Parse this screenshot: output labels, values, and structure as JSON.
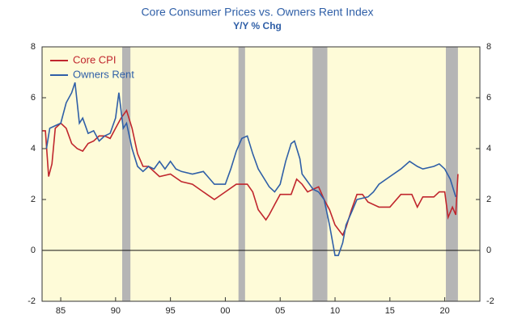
{
  "chart_data": {
    "type": "line",
    "title": "Core Consumer Prices vs. Owners Rent Index",
    "subtitle": "Y/Y % Chg",
    "xlim": [
      1983.3,
      2023.2
    ],
    "xticks": [
      {
        "value": 1985,
        "label": "85"
      },
      {
        "value": 1990,
        "label": "90"
      },
      {
        "value": 1995,
        "label": "95"
      },
      {
        "value": 2000,
        "label": "00"
      },
      {
        "value": 2005,
        "label": "05"
      },
      {
        "value": 2010,
        "label": "10"
      },
      {
        "value": 2015,
        "label": "15"
      },
      {
        "value": 2020,
        "label": "20"
      }
    ],
    "ylim": [
      -2,
      8
    ],
    "yticks": [
      -2,
      0,
      2,
      4,
      6,
      8
    ],
    "y2lim": [
      -2,
      8
    ],
    "y2ticks": [
      -2,
      0,
      2,
      4,
      6,
      8
    ],
    "legend": "upper left",
    "background": "#fefbd8",
    "recession_color": "#b5b5b5",
    "recessions": [
      [
        1990.6,
        1991.35
      ],
      [
        2001.2,
        2001.8
      ],
      [
        2007.95,
        2009.3
      ],
      [
        2020.1,
        2021.2
      ]
    ],
    "series": [
      {
        "name": "Core CPI",
        "color": "#c0262d",
        "x": [
          1983.3,
          1983.6,
          1983.9,
          1984.2,
          1984.5,
          1985,
          1985.5,
          1986,
          1986.5,
          1987,
          1987.5,
          1988,
          1988.5,
          1989,
          1989.5,
          1990,
          1990.5,
          1991,
          1991.5,
          1992,
          1992.5,
          1993,
          1994,
          1995,
          1996,
          1997,
          1998,
          1999,
          2000,
          2001,
          2002,
          2002.5,
          2003,
          2003.7,
          2004,
          2004.5,
          2005,
          2006,
          2006.5,
          2007,
          2007.5,
          2008,
          2008.5,
          2009,
          2009.5,
          2010,
          2010.7,
          2011,
          2011.5,
          2012,
          2012.5,
          2013,
          2014,
          2015,
          2016,
          2017,
          2017.5,
          2018,
          2019,
          2019.5,
          2020,
          2020.3,
          2020.7,
          2021,
          2021.2
        ],
        "values": [
          4.7,
          4.7,
          2.9,
          3.4,
          4.8,
          5.0,
          4.8,
          4.2,
          4.0,
          3.9,
          4.2,
          4.3,
          4.5,
          4.5,
          4.4,
          4.8,
          5.2,
          5.5,
          4.8,
          3.8,
          3.3,
          3.3,
          2.9,
          3.0,
          2.7,
          2.6,
          2.3,
          2.0,
          2.3,
          2.6,
          2.6,
          2.3,
          1.6,
          1.2,
          1.4,
          1.8,
          2.2,
          2.2,
          2.8,
          2.6,
          2.3,
          2.4,
          2.5,
          2.0,
          1.6,
          1.0,
          0.6,
          0.9,
          1.6,
          2.2,
          2.2,
          1.9,
          1.7,
          1.7,
          2.2,
          2.2,
          1.7,
          2.1,
          2.1,
          2.3,
          2.3,
          1.3,
          1.7,
          1.4,
          3.0
        ]
      },
      {
        "name": "Owners Rent",
        "color": "#2f5fa7",
        "x": [
          1983.7,
          1984,
          1984.5,
          1985,
          1985.5,
          1986,
          1986.3,
          1986.7,
          1987,
          1987.5,
          1988,
          1988.5,
          1989,
          1989.5,
          1990,
          1990.3,
          1990.7,
          1991,
          1991.5,
          1992,
          1992.5,
          1993,
          1993.5,
          1994,
          1994.5,
          1995,
          1995.5,
          1996,
          1997,
          1998,
          1999,
          2000,
          2000.5,
          2001,
          2001.5,
          2002,
          2002.5,
          2003,
          2004,
          2004.5,
          2005,
          2005.5,
          2006,
          2006.3,
          2006.8,
          2007,
          2007.5,
          2008,
          2008.5,
          2009,
          2009.5,
          2010,
          2010.3,
          2010.7,
          2011,
          2011.5,
          2012,
          2013,
          2013.5,
          2014,
          2015,
          2016,
          2016.8,
          2017.5,
          2018,
          2019,
          2019.5,
          2020,
          2020.5,
          2021
        ],
        "values": [
          4.0,
          4.8,
          4.9,
          5.0,
          5.8,
          6.2,
          6.6,
          5.0,
          5.2,
          4.6,
          4.7,
          4.3,
          4.5,
          4.6,
          5.2,
          6.2,
          4.8,
          5.0,
          4.0,
          3.3,
          3.1,
          3.3,
          3.2,
          3.5,
          3.2,
          3.5,
          3.2,
          3.1,
          3.0,
          3.1,
          2.6,
          2.6,
          3.2,
          3.9,
          4.4,
          4.5,
          3.8,
          3.2,
          2.5,
          2.3,
          2.6,
          3.5,
          4.2,
          4.3,
          3.6,
          3.0,
          2.7,
          2.4,
          2.3,
          2.0,
          1.0,
          -0.2,
          -0.2,
          0.3,
          1.0,
          1.5,
          2.0,
          2.1,
          2.3,
          2.6,
          2.9,
          3.2,
          3.5,
          3.3,
          3.2,
          3.3,
          3.4,
          3.2,
          2.8,
          2.1
        ]
      }
    ]
  }
}
